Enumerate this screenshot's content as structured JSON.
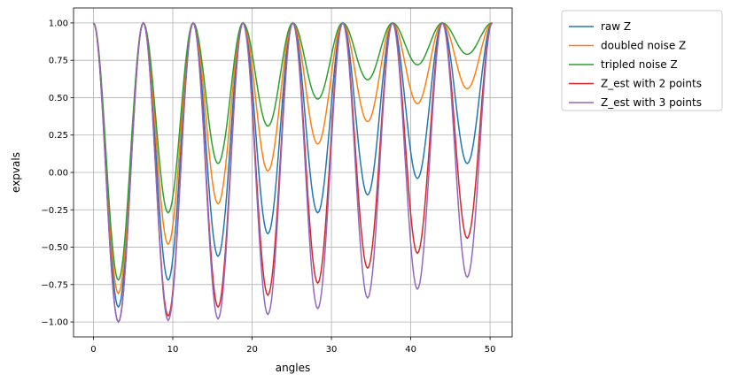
{
  "chart_data": {
    "type": "line",
    "title": "",
    "xlabel": "angles",
    "ylabel": "expvals",
    "xlim": [
      -2.51,
      52.78
    ],
    "ylim": [
      -1.1,
      1.1
    ],
    "grid": true,
    "legend_position": "outside-top-right",
    "xticks": [
      0,
      10,
      20,
      30,
      40,
      50
    ],
    "xtick_labels": [
      "0",
      "10",
      "20",
      "30",
      "40",
      "50"
    ],
    "yticks": [
      -1.0,
      -0.75,
      -0.5,
      -0.25,
      0.0,
      0.25,
      0.5,
      0.75,
      1.0
    ],
    "ytick_labels": [
      "−1.00",
      "−0.75",
      "−0.50",
      "−0.25",
      "0.00",
      "0.25",
      "0.50",
      "0.75",
      "1.00"
    ],
    "x": [
      0,
      3.14,
      6.28,
      9.42,
      12.57,
      15.71,
      18.85,
      21.99,
      25.13,
      28.27,
      31.42,
      34.56,
      37.7,
      40.84,
      43.98,
      47.12,
      50.27
    ],
    "series": [
      {
        "name": "raw Z",
        "color": "#1f77b4",
        "values": [
          1,
          -0.9,
          1,
          -0.72,
          1,
          -0.56,
          1,
          -0.41,
          1,
          -0.27,
          1,
          -0.15,
          1,
          -0.04,
          1,
          0.06,
          1
        ]
      },
      {
        "name": "doubled noise Z",
        "color": "#ff7f0e",
        "values": [
          1,
          -0.81,
          1,
          -0.48,
          1,
          -0.21,
          1,
          0.01,
          1,
          0.19,
          1,
          0.34,
          1,
          0.46,
          1,
          0.56,
          1
        ]
      },
      {
        "name": "tripled noise Z",
        "color": "#2ca02c",
        "values": [
          1,
          -0.72,
          1,
          -0.27,
          1,
          0.06,
          1,
          0.31,
          1,
          0.49,
          1,
          0.62,
          1,
          0.72,
          1,
          0.79,
          1
        ]
      },
      {
        "name": "Z_est with 2 points",
        "color": "#d62728",
        "values": [
          1,
          -1.0,
          1,
          -0.96,
          1,
          -0.9,
          1,
          -0.82,
          1,
          -0.74,
          1,
          -0.64,
          1,
          -0.54,
          1,
          -0.44,
          1
        ]
      },
      {
        "name": "Z_est with 3 points",
        "color": "#9467bd",
        "values": [
          1,
          -1.0,
          1,
          -0.99,
          1,
          -0.98,
          1,
          -0.95,
          1,
          -0.91,
          1,
          -0.84,
          1,
          -0.78,
          1,
          -0.7,
          1
        ]
      }
    ]
  }
}
